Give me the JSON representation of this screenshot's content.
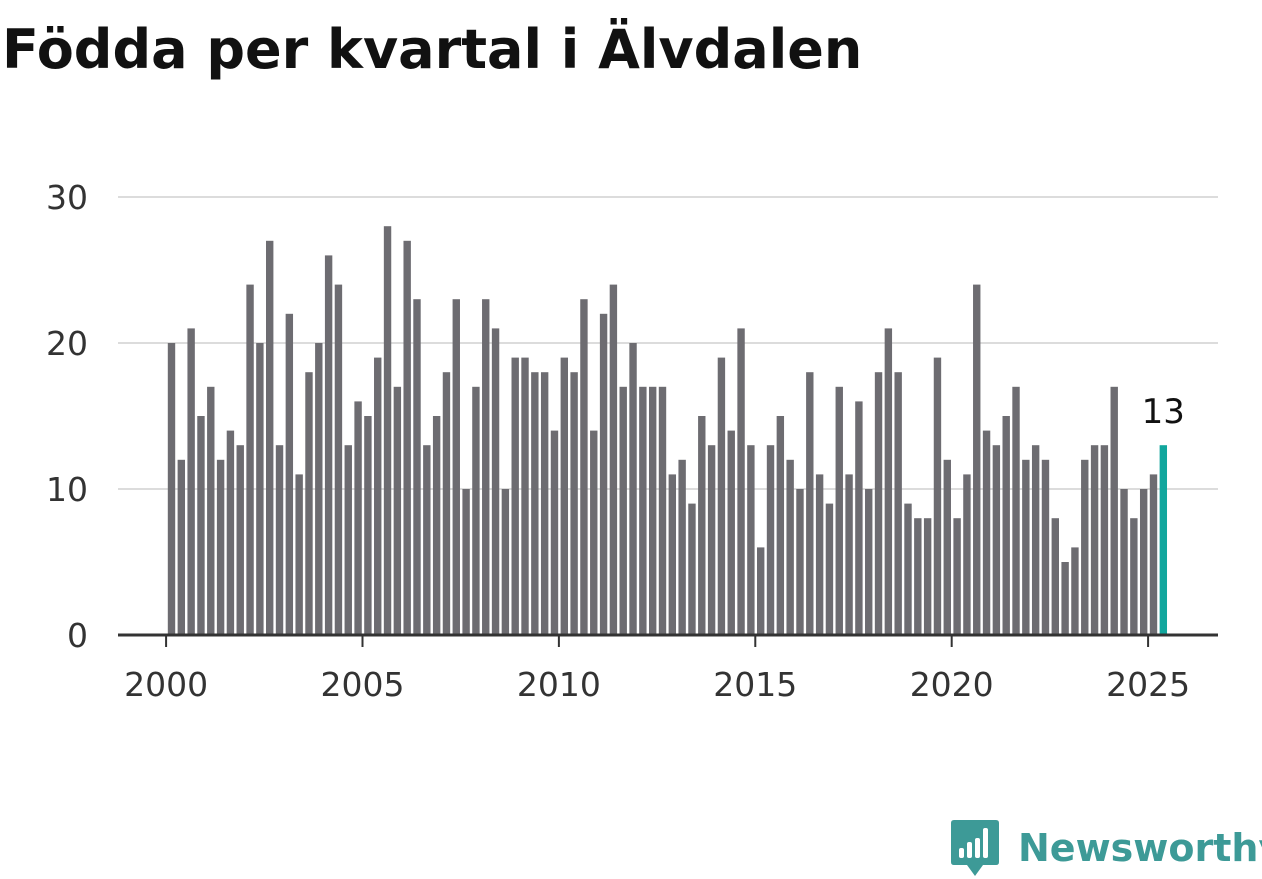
{
  "title": "Födda per kvartal i Älvdalen",
  "brand": {
    "name": "Newsworthy",
    "icon": "newsworthy-logo-icon",
    "color": "#3d9a97"
  },
  "chart_data": {
    "type": "bar",
    "title": "Födda per kvartal i Älvdalen",
    "xlabel": "",
    "ylabel": "",
    "x_start": 2000,
    "periods_per_year": 4,
    "x_ticks": [
      "2000",
      "2005",
      "2010",
      "2015",
      "2020",
      "2025"
    ],
    "y_ticks": [
      "0",
      "10",
      "20",
      "30"
    ],
    "ylim": [
      0,
      30
    ],
    "grid": true,
    "bar_color": "#6d6c71",
    "highlight_color": "#11a69d",
    "highlight_last": true,
    "annotation": "13",
    "values": [
      20,
      12,
      21,
      15,
      17,
      12,
      14,
      13,
      24,
      20,
      27,
      13,
      22,
      11,
      18,
      20,
      26,
      24,
      13,
      16,
      15,
      19,
      28,
      17,
      27,
      23,
      13,
      15,
      18,
      23,
      10,
      17,
      23,
      21,
      10,
      19,
      19,
      18,
      18,
      14,
      19,
      18,
      23,
      14,
      22,
      24,
      17,
      20,
      17,
      17,
      17,
      11,
      12,
      9,
      15,
      13,
      19,
      14,
      21,
      13,
      6,
      13,
      15,
      12,
      10,
      18,
      11,
      9,
      17,
      11,
      16,
      10,
      18,
      21,
      18,
      9,
      8,
      8,
      19,
      12,
      8,
      11,
      24,
      14,
      13,
      15,
      17,
      12,
      13,
      12,
      8,
      5,
      6,
      12,
      13,
      13,
      17,
      10,
      8,
      10,
      11,
      13
    ]
  }
}
